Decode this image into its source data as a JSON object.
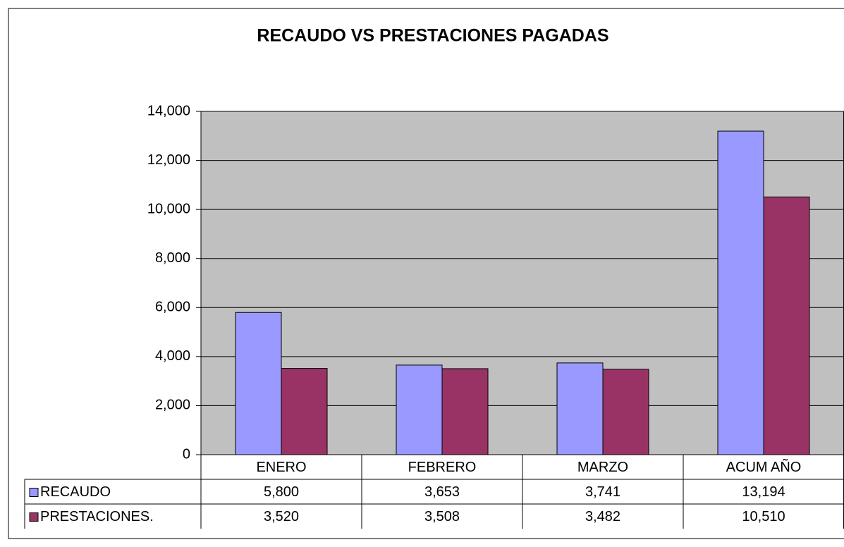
{
  "chart_data": {
    "type": "bar",
    "title": "RECAUDO VS PRESTACIONES PAGADAS",
    "categories": [
      "ENERO",
      "FEBRERO",
      "MARZO",
      "ACUM AÑO"
    ],
    "series": [
      {
        "name": "RECAUDO",
        "color": "#9999ff",
        "values": [
          5800,
          3653,
          3741,
          13194
        ],
        "value_labels": [
          "5,800",
          "3,653",
          "3,741",
          "13,194"
        ]
      },
      {
        "name": "PRESTACIONES.",
        "color": "#993366",
        "values": [
          3520,
          3508,
          3482,
          10510
        ],
        "value_labels": [
          "3,520",
          "3,508",
          "3,482",
          "10,510"
        ]
      }
    ],
    "ylim": [
      0,
      14000
    ],
    "yticks": [
      0,
      {
        "value": 2000,
        "label": "2,000"
      },
      {
        "value": 4000,
        "label": "4,000"
      },
      {
        "value": 6000,
        "label": "6,000"
      },
      {
        "value": 8000,
        "label": "8,000"
      },
      {
        "value": 10000,
        "label": "10,000"
      },
      {
        "value": 12000,
        "label": "12,000"
      },
      {
        "value": 14000,
        "label": "14,000"
      }
    ],
    "grid": true,
    "plot_background": "#c0c0c0"
  }
}
